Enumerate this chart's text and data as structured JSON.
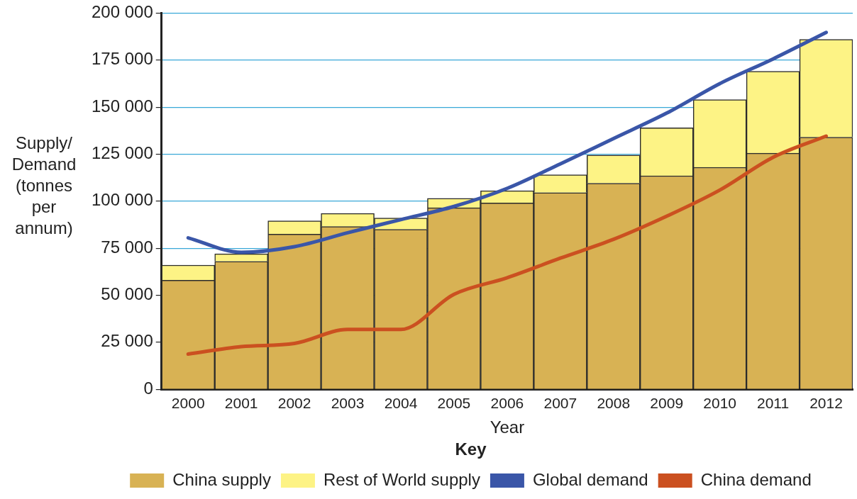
{
  "chart_data": {
    "type": "bar",
    "stacked": true,
    "xlabel": "Year",
    "ylabel": "Supply/ Demand (tonnes per annum)",
    "legend_title": "Key",
    "legend": "bottom",
    "grid": "y",
    "marker": "none",
    "line_style": "solid",
    "categories": [
      "2000",
      "2001",
      "2002",
      "2003",
      "2004",
      "2005",
      "2006",
      "2007",
      "2008",
      "2009",
      "2010",
      "2011",
      "2012"
    ],
    "ylim": [
      0,
      200000
    ],
    "yticks": [
      0,
      {
        "value": 25000,
        "label": "25 000"
      },
      {
        "value": 50000,
        "label": "50 000"
      },
      {
        "value": 75000,
        "label": "75 000"
      },
      {
        "value": 100000,
        "label": "100 000"
      },
      {
        "value": 125000,
        "label": "125 000"
      },
      {
        "value": 150000,
        "label": "150 000"
      },
      {
        "value": 175000,
        "label": "175 000"
      },
      {
        "value": 200000,
        "label": "200 000"
      }
    ],
    "series": [
      {
        "name": "China supply",
        "color": "#d8b254",
        "values": [
          58000,
          68000,
          82500,
          86500,
          85000,
          96500,
          99000,
          104500,
          109500,
          113500,
          118000,
          125500,
          134000
        ]
      },
      {
        "name": "Rest of World supply",
        "color": "#fdf385",
        "values": [
          8000,
          4000,
          7000,
          7000,
          6000,
          5000,
          6500,
          9500,
          15000,
          25500,
          36000,
          43500,
          52000
        ]
      },
      {
        "name": "Global demand",
        "type": "line",
        "color": "#3a56a8",
        "values": [
          80500,
          72800,
          75800,
          83200,
          90200,
          97200,
          106800,
          119800,
          133300,
          146800,
          162500,
          175600,
          189700
        ]
      },
      {
        "name": "China demand",
        "type": "line",
        "color": "#cb5020",
        "values": [
          18700,
          22700,
          24400,
          31800,
          31800,
          50500,
          59300,
          69700,
          79700,
          92000,
          105900,
          123300,
          134600
        ]
      }
    ]
  }
}
